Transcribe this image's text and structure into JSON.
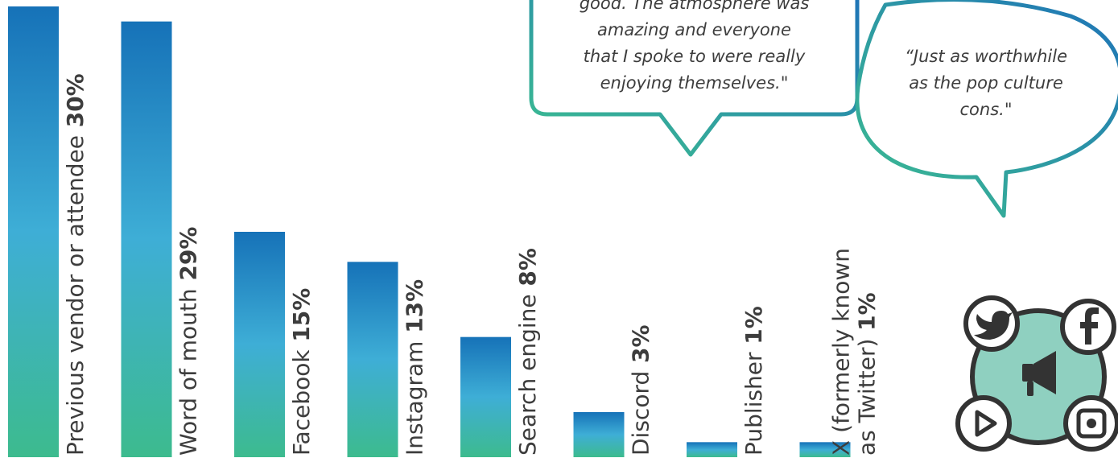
{
  "chart_data": {
    "type": "bar",
    "categories": [
      "Previous vendor or attendee",
      "Word of mouth",
      "Facebook",
      "Instagram",
      "Search engine",
      "Discord",
      "Publisher",
      "X (formerly known as Twitter)"
    ],
    "label_lines": [
      [
        "Previous vendor or attendee"
      ],
      [
        "Word of mouth"
      ],
      [
        "Facebook"
      ],
      [
        "Instagram"
      ],
      [
        "Search engine"
      ],
      [
        "Discord"
      ],
      [
        "Publisher"
      ],
      [
        "X (formerly known",
        "as Twitter)"
      ]
    ],
    "values": [
      30,
      29,
      15,
      13,
      8,
      3,
      1,
      1
    ],
    "value_labels": [
      "30%",
      "29%",
      "15%",
      "13%",
      "8%",
      "3%",
      "1%",
      "1%"
    ],
    "ylim": [
      0,
      30
    ],
    "grid": false,
    "colors": {
      "bar_top": "#1672b8",
      "bar_mid": "#3eaed6",
      "bar_bottom": "#3dbb8e",
      "text": "#3d3d3d"
    }
  },
  "quotes": [
    {
      "lines": [
        "good. The atmosphere was",
        "amazing and everyone",
        "that I spoke to were really",
        "enjoying themselves.\""
      ]
    },
    {
      "lines": [
        "“Just as worthwhile",
        "as the pop culture",
        "cons.\""
      ]
    }
  ],
  "bubble_colors": {
    "stroke_start": "#1e73b8",
    "stroke_end": "#3dbf8f"
  },
  "social_icons": {
    "names": [
      "twitter-icon",
      "facebook-icon",
      "megaphone-icon",
      "youtube-icon",
      "instagram-icon"
    ],
    "circle_fill": "#8fd0c0",
    "stroke": "#333333"
  }
}
